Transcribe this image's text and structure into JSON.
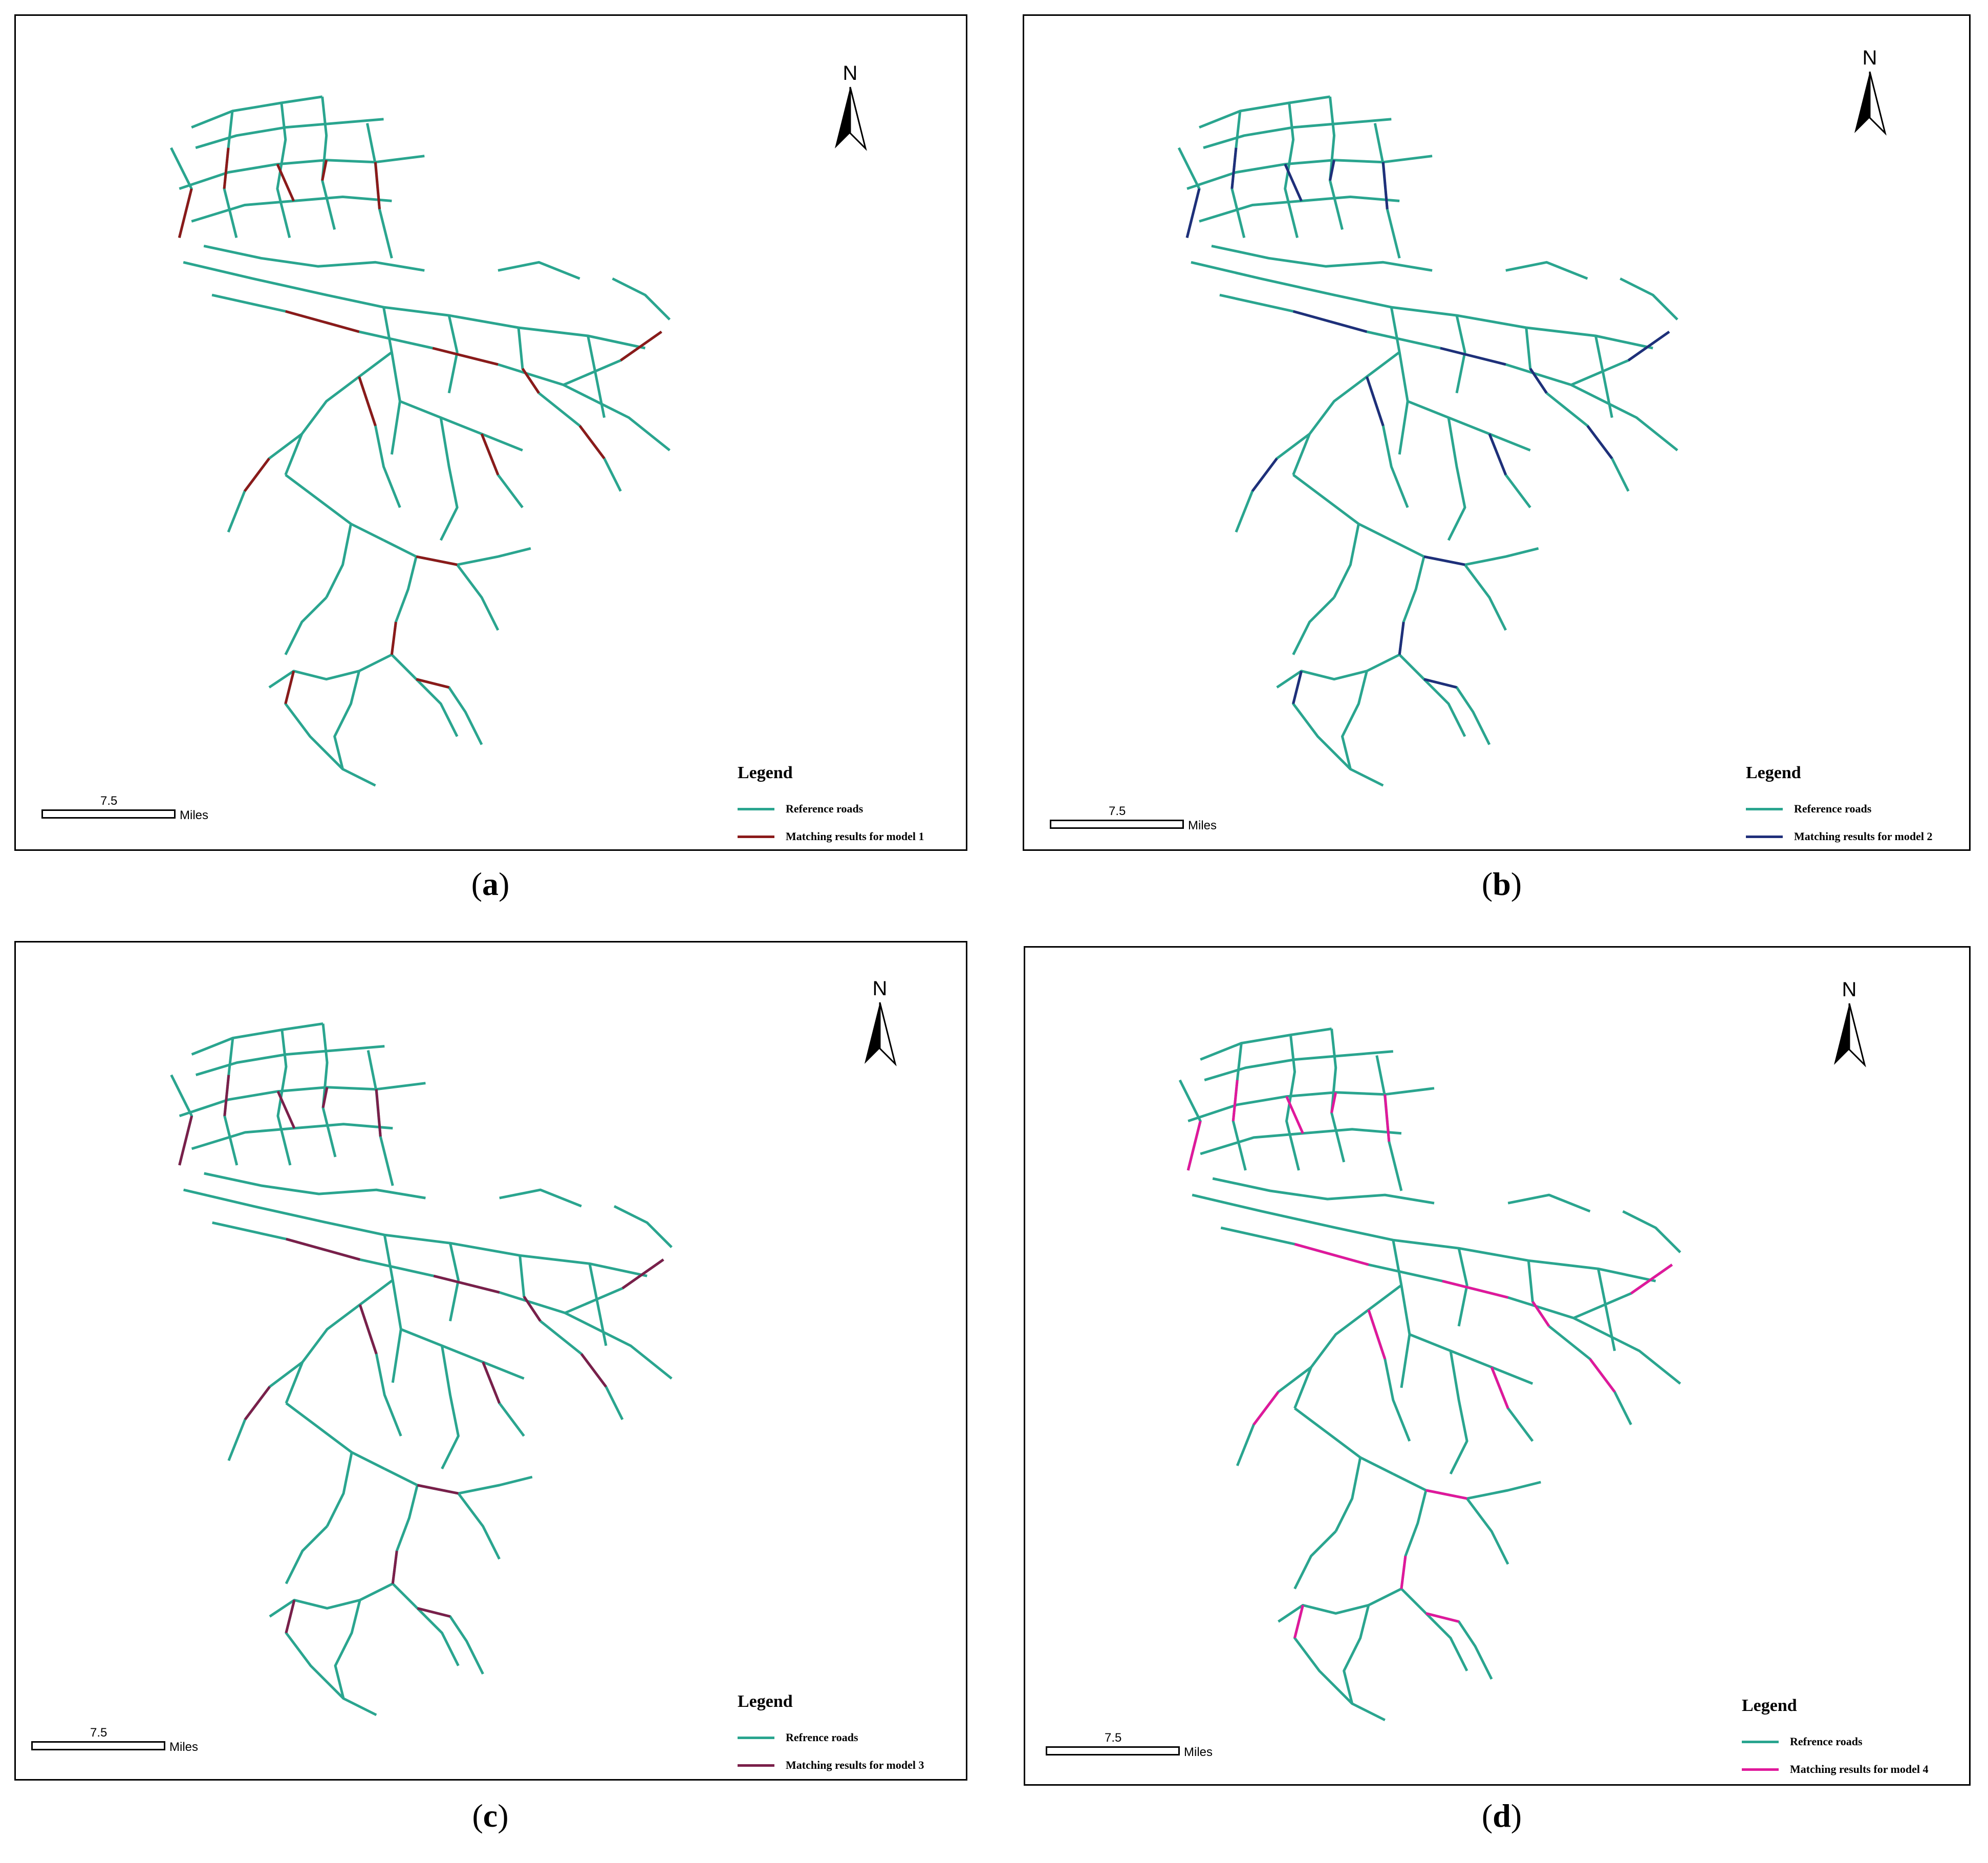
{
  "colors": {
    "reference": "#2aa58f",
    "model1": "#8b1a1a",
    "model2": "#1f2f7a",
    "model3": "#7a1f4a",
    "model4": "#e0189b"
  },
  "panels": [
    {
      "id": "a",
      "north_label": "N",
      "legend_title": "Legend",
      "legend_reference": "Reference roads",
      "legend_match": "Matching results for model 1",
      "match_color_key": "model1",
      "scale_value": "7.5",
      "scale_unit": "Miles",
      "caption_open": "(",
      "caption_letter": "a",
      "caption_close": ")"
    },
    {
      "id": "b",
      "north_label": "N",
      "legend_title": "Legend",
      "legend_reference": "Reference roads",
      "legend_match": "Matching results for model 2",
      "match_color_key": "model2",
      "scale_value": "7.5",
      "scale_unit": "Miles",
      "caption_open": "(",
      "caption_letter": "b",
      "caption_close": ")"
    },
    {
      "id": "c",
      "north_label": "N",
      "legend_title": "Legend",
      "legend_reference": "Refrence roads",
      "legend_match": "Matching results for model 3",
      "match_color_key": "model3",
      "scale_value": "7.5",
      "scale_unit": "Miles",
      "caption_open": "(",
      "caption_letter": "c",
      "caption_close": ")"
    },
    {
      "id": "d",
      "north_label": "N",
      "legend_title": "Legend",
      "legend_reference": "Refrence roads",
      "legend_match": "Matching results for model 4",
      "match_color_key": "model4",
      "scale_value": "7.5",
      "scale_unit": "Miles",
      "caption_open": "(",
      "caption_letter": "d",
      "caption_close": ")"
    }
  ]
}
